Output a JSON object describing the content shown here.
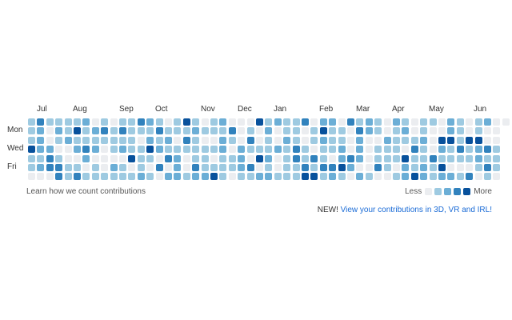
{
  "graph": {
    "months": [
      "Jul",
      "Aug",
      "Sep",
      "Oct",
      "Nov",
      "Dec",
      "Jan",
      "Feb",
      "Mar",
      "Apr",
      "May",
      "Jun"
    ],
    "days": [
      "Mon",
      "Wed",
      "Fri"
    ],
    "weeks": 53,
    "palette": [
      "#ebedf0",
      "#9ecae1",
      "#6baed6",
      "#3182bd",
      "#08519c"
    ]
  },
  "footer": {
    "learn_link": "Learn how we count contributions",
    "less_label": "Less",
    "more_label": "More"
  },
  "promo": {
    "prefix": "NEW!",
    "link": "View your contributions in 3D, VR and IRL!"
  }
}
